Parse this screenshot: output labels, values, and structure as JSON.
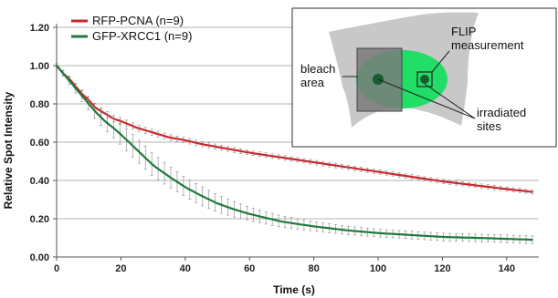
{
  "chart_data": {
    "type": "line",
    "xlabel": "Time (s)",
    "ylabel": "Relative Spot Intensity",
    "xlim": [
      0,
      150
    ],
    "ylim": [
      0,
      1.2
    ],
    "x_ticks": [
      0,
      20,
      40,
      60,
      80,
      100,
      120,
      140
    ],
    "x_tick_labels": [
      "0",
      "20",
      "40",
      "60",
      "80",
      "100",
      "120",
      "140"
    ],
    "y_ticks": [
      0,
      0.2,
      0.4,
      0.6,
      0.8,
      1.0,
      1.2
    ],
    "y_tick_labels": [
      "0.00",
      "0.20",
      "0.40",
      "0.60",
      "0.80",
      "1.00",
      "1.20"
    ],
    "grid": "horizontal",
    "legend_position": "top-left",
    "error_bars": true,
    "series": [
      {
        "name": "RFP-PCNA (n=9)",
        "color": "#c8282a",
        "x": [
          0,
          2,
          4,
          6,
          8,
          10,
          12,
          15,
          18,
          20,
          25,
          30,
          35,
          40,
          45,
          50,
          55,
          60,
          70,
          80,
          90,
          100,
          110,
          120,
          130,
          140,
          148
        ],
        "y": [
          1.0,
          0.96,
          0.93,
          0.89,
          0.85,
          0.82,
          0.78,
          0.75,
          0.72,
          0.71,
          0.675,
          0.65,
          0.625,
          0.61,
          0.59,
          0.575,
          0.56,
          0.545,
          0.52,
          0.495,
          0.47,
          0.445,
          0.42,
          0.395,
          0.375,
          0.355,
          0.34
        ],
        "err": [
          0.01,
          0.012,
          0.014,
          0.015,
          0.016,
          0.017,
          0.018,
          0.018,
          0.018,
          0.018,
          0.016,
          0.015,
          0.015,
          0.014,
          0.014,
          0.013,
          0.013,
          0.012,
          0.012,
          0.012,
          0.012,
          0.011,
          0.011,
          0.011,
          0.011,
          0.011,
          0.011
        ]
      },
      {
        "name": "GFP-XRCC1 (n=9)",
        "color": "#1e7a3c",
        "x": [
          0,
          2,
          4,
          6,
          8,
          10,
          12,
          15,
          18,
          20,
          25,
          30,
          35,
          40,
          45,
          50,
          55,
          60,
          70,
          80,
          90,
          100,
          110,
          120,
          130,
          140,
          148
        ],
        "y": [
          1.0,
          0.96,
          0.92,
          0.88,
          0.84,
          0.8,
          0.76,
          0.71,
          0.67,
          0.64,
          0.56,
          0.48,
          0.42,
          0.365,
          0.32,
          0.28,
          0.25,
          0.225,
          0.185,
          0.16,
          0.14,
          0.125,
          0.115,
          0.105,
          0.1,
          0.095,
          0.09
        ],
        "err": [
          0.01,
          0.015,
          0.02,
          0.025,
          0.03,
          0.035,
          0.04,
          0.045,
          0.05,
          0.055,
          0.06,
          0.06,
          0.055,
          0.05,
          0.05,
          0.045,
          0.04,
          0.035,
          0.03,
          0.025,
          0.022,
          0.02,
          0.02,
          0.02,
          0.02,
          0.02,
          0.02
        ]
      }
    ],
    "inset": {
      "labels": {
        "bleach": "bleach\narea",
        "flip": "FLIP\nmeasurement",
        "irradiated": "irradiated\nsites"
      },
      "colors": {
        "cell": "#c8c8c8",
        "nucleus": "#22dd66",
        "bleach_box": "#7a7a7a",
        "site": "#1a5a30"
      }
    }
  }
}
